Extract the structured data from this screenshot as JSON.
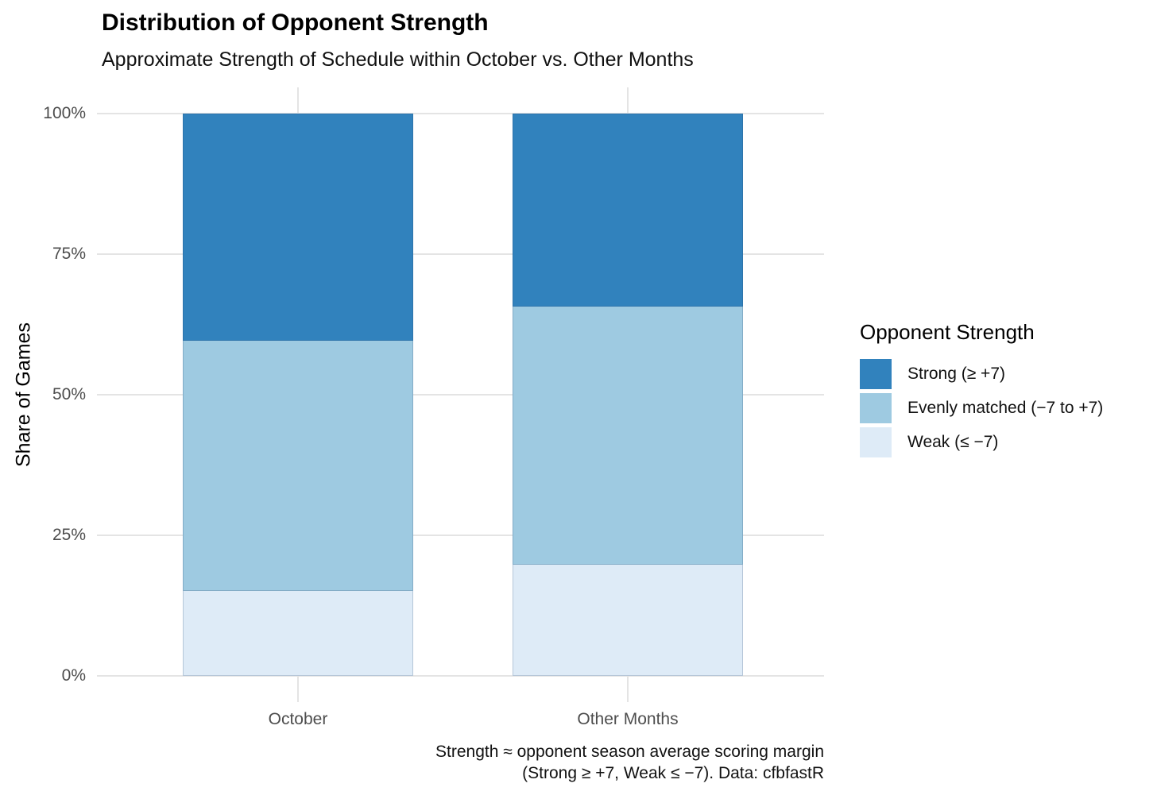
{
  "chart_data": {
    "type": "bar",
    "stacked": true,
    "orientation": "vertical",
    "title": "Distribution of Opponent Strength",
    "subtitle": "Approximate Strength of Schedule within October vs. Other Months",
    "xlabel": "",
    "ylabel": "Share of Games",
    "ylim": [
      0,
      100
    ],
    "categories": [
      "October",
      "Other Months"
    ],
    "series": [
      {
        "name": "Strong (≥ +7)",
        "color": "#3182BD",
        "values": [
          40.5,
          34.3
        ]
      },
      {
        "name": "Evenly matched (−7 to +7)",
        "color": "#9ECAE1",
        "values": [
          44.4,
          45.9
        ]
      },
      {
        "name": "Weak (≤ −7)",
        "color": "#DEEBF7",
        "values": [
          15.1,
          19.8
        ]
      }
    ],
    "y_ticks": [
      {
        "value": 0,
        "label": "0%"
      },
      {
        "value": 25,
        "label": "25%"
      },
      {
        "value": 50,
        "label": "50%"
      },
      {
        "value": 75,
        "label": "75%"
      },
      {
        "value": 100,
        "label": "100%"
      }
    ],
    "legend_title": "Opponent Strength",
    "legend_position": "right",
    "grid": "horizontal-major and x-category gridlines, no axis lines",
    "caption": [
      "Strength ≈ opponent season average scoring margin",
      "(Strong ≥ +7, Weak ≤ −7). Data: cfbfastR"
    ],
    "colors": {
      "grid": "#E4E4E4",
      "axis_text": "#4D4D4D",
      "text": "#000000",
      "background": "#FFFFFF"
    }
  }
}
